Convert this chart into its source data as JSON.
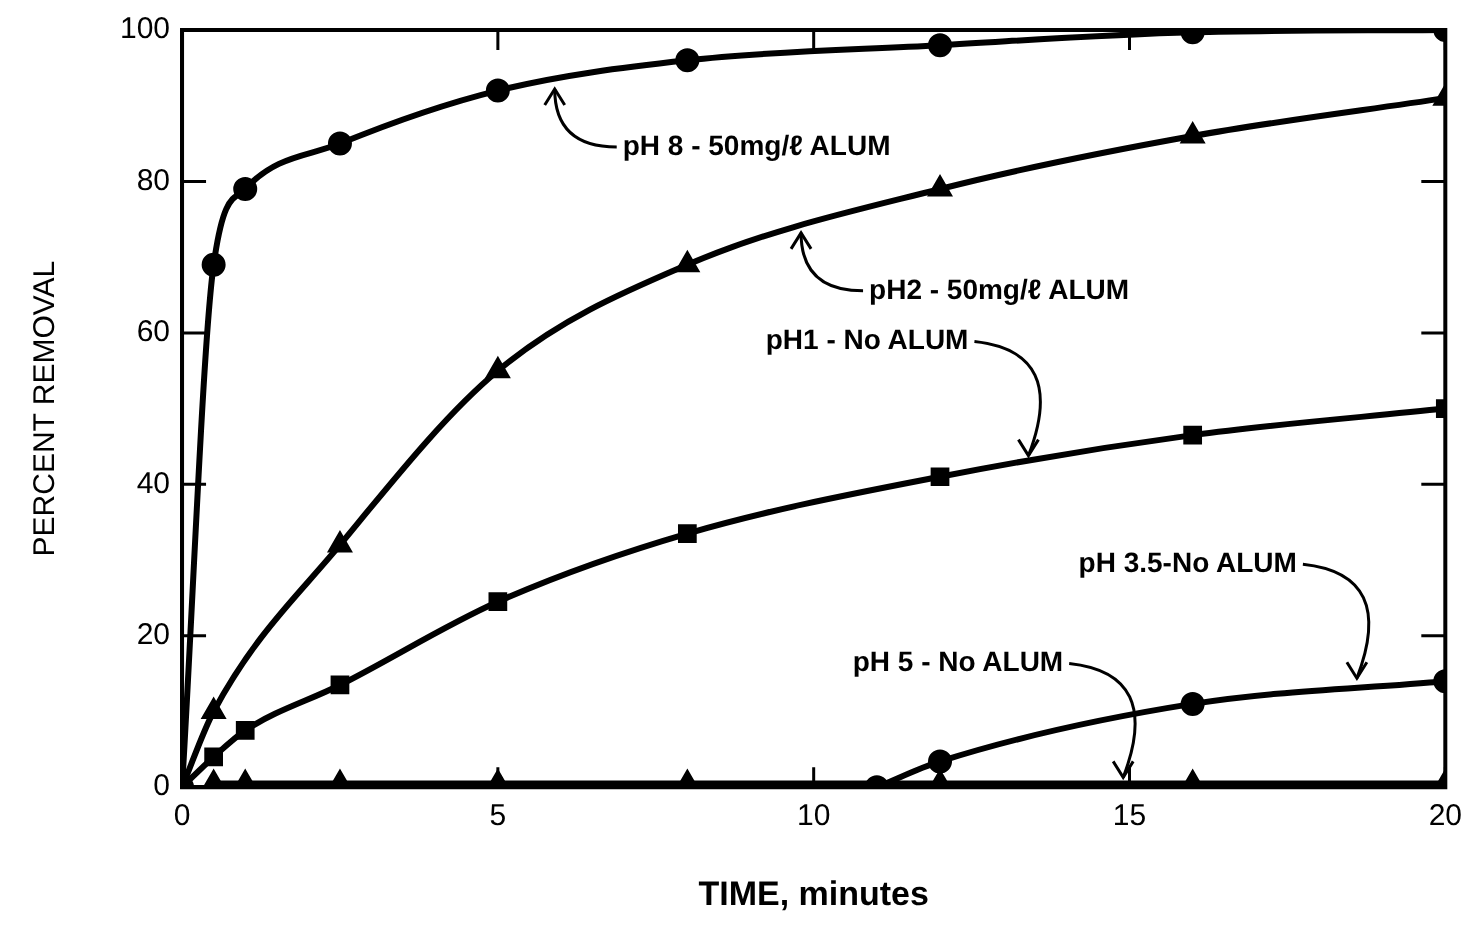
{
  "chart_data": {
    "type": "line",
    "xlabel": "TIME, minutes",
    "ylabel": "PERCENT REMOVAL",
    "xlim": [
      0,
      20
    ],
    "xticks": [
      0,
      5,
      10,
      15,
      20
    ],
    "ylim": [
      0,
      100
    ],
    "yticks": [
      0,
      20,
      40,
      60,
      80,
      100
    ],
    "series": [
      {
        "color": "#000000",
        "marker": "circle",
        "x": [
          0,
          0.5,
          1,
          2.5,
          5,
          8,
          12,
          16,
          20
        ],
        "values": [
          0,
          69,
          79,
          85,
          92,
          96,
          98,
          99.7,
          100
        ]
      },
      {
        "color": "#000000",
        "marker": "triangle",
        "x": [
          0,
          0.5,
          2.5,
          5,
          8,
          12,
          16,
          20
        ],
        "values": [
          0,
          10,
          32,
          55,
          69,
          79,
          86,
          91
        ]
      },
      {
        "color": "#000000",
        "marker": "rect",
        "x": [
          0,
          0.5,
          1,
          2.5,
          5,
          8,
          12,
          16,
          20
        ],
        "values": [
          0,
          4,
          7.5,
          13.5,
          24.5,
          33.5,
          41,
          46.5,
          50
        ]
      },
      {
        "color": "#000000",
        "marker": "circle",
        "x": [
          11,
          12,
          16,
          20
        ],
        "values": [
          0,
          3.4,
          11,
          14
        ]
      },
      {
        "color": "#000000",
        "marker": "triangle",
        "x": [
          0.5,
          1,
          2.5,
          5,
          8,
          12,
          16,
          20
        ],
        "values": [
          0.5,
          0.5,
          0.5,
          0.5,
          0.5,
          0.5,
          0.5,
          0.5
        ]
      }
    ],
    "annotations": [
      {
        "text": "pH 8 - 50mg/ℓ ALUM",
        "x": 5.9,
        "y": 93
      },
      {
        "text": "pH2 - 50mg/ℓ ALUM",
        "x": 9.8,
        "y": 74
      },
      {
        "text": "pH1 - No ALUM",
        "x": 13.4,
        "y": 43
      },
      {
        "text": "pH 3.5-No ALUM",
        "x": 18.6,
        "y": 13.6
      },
      {
        "text": "pH 5 - No ALUM",
        "x": 14.9,
        "y": 0.5
      }
    ],
    "legend": false
  }
}
